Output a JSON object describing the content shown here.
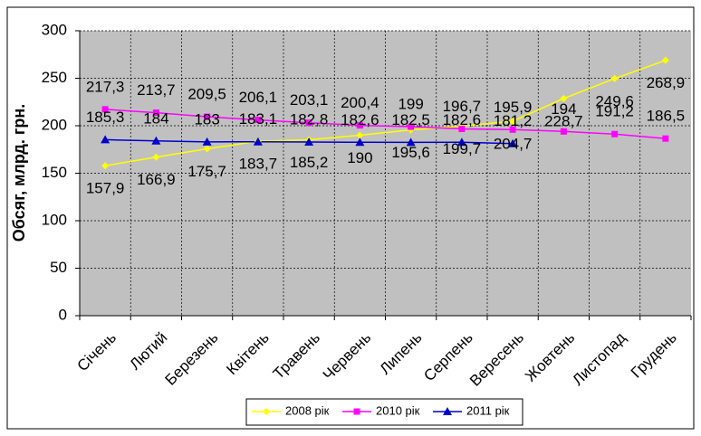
{
  "chart_data": {
    "type": "line",
    "ylabel": "Обсяг, млрд. грн.",
    "categories": [
      "Січень",
      "Лютий",
      "Березень",
      "Квітень",
      "Травень",
      "Червень",
      "Липень",
      "Серпень",
      "Вересень",
      "Жовтень",
      "Листопад",
      "Грудень"
    ],
    "series": [
      {
        "name": "2008 рік",
        "color": "#ffff00",
        "marker": "diamond",
        "label_position": "below",
        "values": [
          157.9,
          166.9,
          175.7,
          183.7,
          185.2,
          190,
          195.6,
          199.7,
          204.7,
          228.7,
          249.6,
          268.9
        ],
        "value_labels": [
          "157,9",
          "166,9",
          "175,7",
          "183,7",
          "185,2",
          "190",
          "195,6",
          "199,7",
          "204,7",
          "228,7",
          "249,6",
          "268,9"
        ]
      },
      {
        "name": "2010 рік",
        "color": "#ff00ff",
        "marker": "square",
        "label_position": "above",
        "values": [
          217.3,
          213.7,
          209.5,
          206.1,
          203.1,
          200.4,
          199,
          196.7,
          195.9,
          194,
          191.2,
          186.5
        ],
        "value_labels": [
          "217,3",
          "213,7",
          "209,5",
          "206,1",
          "203,1",
          "200,4",
          "199",
          "196,7",
          "195,9",
          "194",
          "191,2",
          "186,5"
        ]
      },
      {
        "name": "2011 рік",
        "color": "#0000cc",
        "marker": "triangle",
        "label_position": "above",
        "values": [
          185.3,
          184,
          183,
          183.1,
          182.8,
          182.6,
          182.5,
          182.6,
          181.2,
          null,
          null,
          null
        ],
        "value_labels": [
          "185,3",
          "184",
          "183",
          "183,1",
          "182,8",
          "182,6",
          "182,5",
          "182,6",
          "181,2",
          null,
          null,
          null
        ]
      }
    ],
    "ylim": [
      0,
      300
    ],
    "yticks": [
      0,
      50,
      100,
      150,
      200,
      250,
      300
    ],
    "grid": true,
    "legend": "bottom"
  }
}
